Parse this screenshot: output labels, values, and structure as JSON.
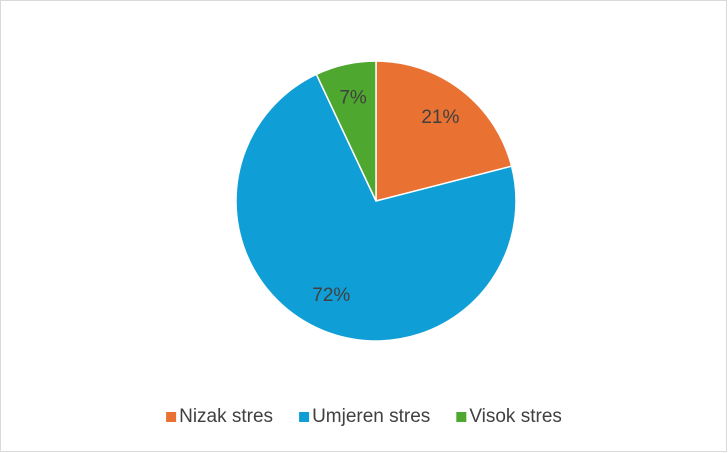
{
  "chart_data": {
    "type": "pie",
    "categories": [
      "Nizak stres",
      "Umjeren stres",
      "Visok stres"
    ],
    "values": [
      21,
      72,
      7
    ],
    "value_labels": [
      "21%",
      "72%",
      "7%"
    ],
    "colors": [
      "#E97132",
      "#0F9ED5",
      "#4EA72E"
    ],
    "legend": "bottom"
  }
}
